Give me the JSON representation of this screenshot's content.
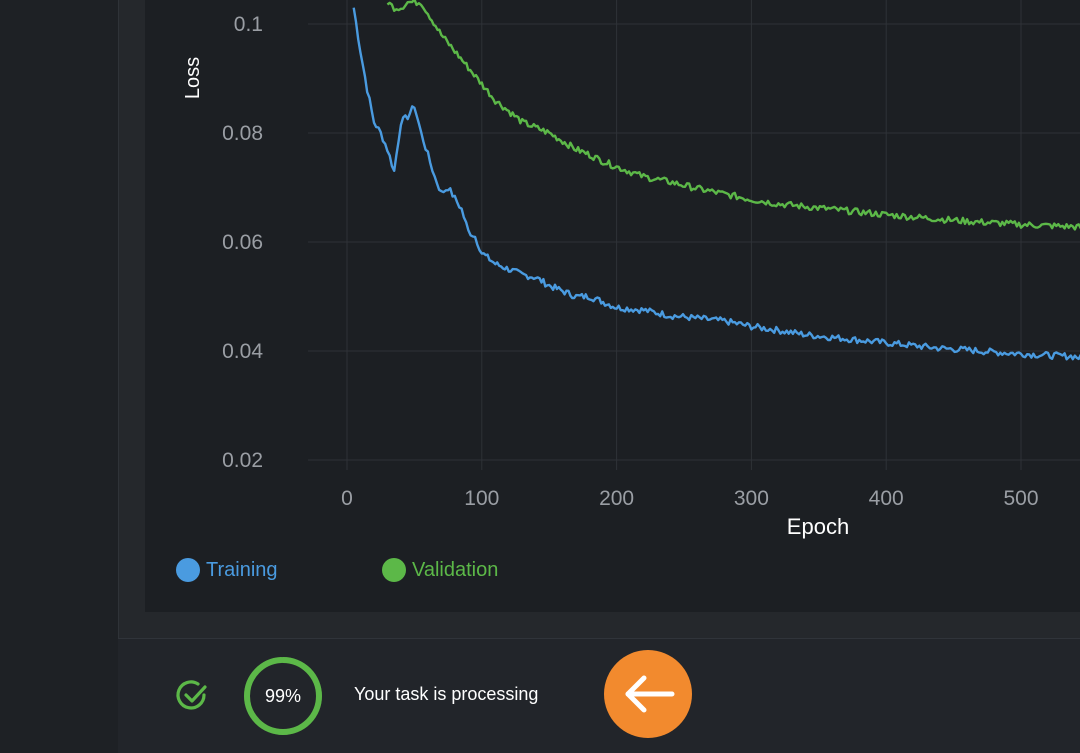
{
  "chart_data": {
    "type": "line",
    "xlabel": "Epoch",
    "ylabel": "Loss",
    "x_ticks": [
      0,
      100,
      200,
      300,
      400,
      500
    ],
    "y_ticks": [
      0.02,
      0.04,
      0.06,
      0.08,
      0.1
    ],
    "y_tick_labels": [
      "0.02",
      "0.04",
      "0.06",
      "0.08",
      "0.1"
    ],
    "xlim": [
      -28,
      547
    ],
    "ylim": [
      0.018,
      0.104
    ],
    "grid": true,
    "legend_position": "bottom-left",
    "series": [
      {
        "name": "Training",
        "color": "#4a9be0",
        "x": [
          5,
          10,
          15,
          20,
          25,
          30,
          35,
          40,
          45,
          50,
          55,
          60,
          65,
          70,
          75,
          80,
          85,
          90,
          95,
          100,
          110,
          120,
          130,
          140,
          150,
          160,
          170,
          180,
          190,
          200,
          220,
          240,
          260,
          280,
          300,
          320,
          340,
          360,
          380,
          400,
          420,
          440,
          460,
          480,
          500,
          520,
          540,
          547
        ],
        "y": [
          0.103,
          0.095,
          0.088,
          0.082,
          0.08,
          0.077,
          0.073,
          0.082,
          0.083,
          0.085,
          0.08,
          0.076,
          0.072,
          0.069,
          0.07,
          0.068,
          0.066,
          0.062,
          0.061,
          0.058,
          0.056,
          0.055,
          0.054,
          0.0535,
          0.052,
          0.051,
          0.05,
          0.05,
          0.049,
          0.048,
          0.0475,
          0.0465,
          0.046,
          0.0455,
          0.0445,
          0.0438,
          0.043,
          0.0425,
          0.042,
          0.0415,
          0.041,
          0.0405,
          0.0402,
          0.0398,
          0.0395,
          0.0392,
          0.039,
          0.0385
        ]
      },
      {
        "name": "Validation",
        "color": "#5cb848",
        "x": [
          30,
          35,
          40,
          45,
          50,
          55,
          60,
          70,
          80,
          90,
          100,
          110,
          120,
          130,
          140,
          150,
          160,
          170,
          180,
          190,
          200,
          220,
          240,
          260,
          280,
          300,
          320,
          340,
          360,
          380,
          400,
          420,
          440,
          460,
          480,
          500,
          520,
          540,
          547
        ],
        "y": [
          0.104,
          0.103,
          0.103,
          0.104,
          0.104,
          0.104,
          0.102,
          0.098,
          0.095,
          0.092,
          0.089,
          0.086,
          0.084,
          0.082,
          0.081,
          0.08,
          0.0785,
          0.077,
          0.076,
          0.0748,
          0.0738,
          0.072,
          0.071,
          0.0698,
          0.0688,
          0.0678,
          0.067,
          0.0665,
          0.066,
          0.0655,
          0.065,
          0.0646,
          0.0642,
          0.0638,
          0.0635,
          0.0632,
          0.063,
          0.0628,
          0.0626
        ]
      }
    ]
  },
  "legend": {
    "training_label": "Training",
    "validation_label": "Validation"
  },
  "footer": {
    "progress_text": "99%",
    "progress_value": 0.99,
    "status_text": "Your task is processing"
  },
  "icons": {
    "status_icon": "check-circle-icon",
    "back_icon": "arrow-left-icon"
  },
  "colors": {
    "training": "#4a9be0",
    "validation": "#5cb848",
    "accent_orange": "#f28a2e",
    "progress_green": "#5cb848",
    "axis_text": "#9a9ea4",
    "label_text": "#ffffff"
  }
}
